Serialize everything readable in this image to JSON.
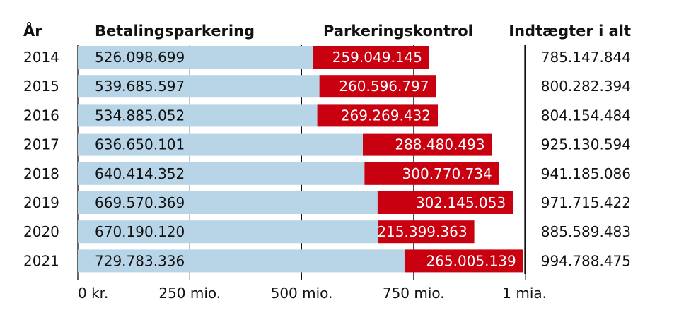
{
  "chart_data": {
    "type": "bar",
    "stacked": true,
    "orientation": "horizontal",
    "headers": {
      "year": "År",
      "series1": "Betalingsparkering",
      "series2": "Parkeringskontrol",
      "total": "Indtægter i alt"
    },
    "categories": [
      "2014",
      "2015",
      "2016",
      "2017",
      "2018",
      "2019",
      "2020",
      "2021"
    ],
    "series": [
      {
        "name": "Betalingsparkering",
        "color": "#b8d5e7",
        "values": [
          526098699,
          539685597,
          534885052,
          636650101,
          640414352,
          669570369,
          670190120,
          729783336
        ],
        "labels": [
          "526.098.699",
          "539.685.597",
          "534.885.052",
          "636.650.101",
          "640.414.352",
          "669.570.369",
          "670.190.120",
          "729.783.336"
        ]
      },
      {
        "name": "Parkeringskontrol",
        "color": "#c8000f",
        "values": [
          259049145,
          260596797,
          269269432,
          288480493,
          300770734,
          302145053,
          215399363,
          265005139
        ],
        "labels": [
          "259.049.145",
          "260.596.797",
          "269.269.432",
          "288.480.493",
          "300.770.734",
          "302.145.053",
          "215.399.363",
          "265.005.139"
        ]
      }
    ],
    "totals": [
      "785.147.844",
      "800.282.394",
      "804.154.484",
      "925.130.594",
      "941.185.086",
      "971.715.422",
      "885.589.483",
      "994.788.475"
    ],
    "xlim": [
      0,
      1000000000
    ],
    "xticks": [
      0,
      250000000,
      500000000,
      750000000,
      1000000000
    ],
    "xtick_labels": [
      "0 kr.",
      "250 mio.",
      "500 mio.",
      "750 mio.",
      "1 mia."
    ],
    "grid": true
  }
}
